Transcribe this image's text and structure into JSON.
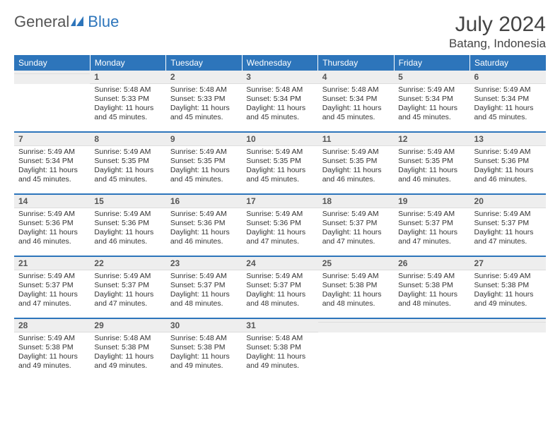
{
  "brand": {
    "part1": "General",
    "part2": "Blue"
  },
  "title": "July 2024",
  "location": "Batang, Indonesia",
  "colors": {
    "header_bg": "#2d75bb",
    "header_text": "#ffffff",
    "daynum_bg": "#eeeeee",
    "week_sep": "#2d75bb",
    "text": "#333333",
    "background": "#ffffff"
  },
  "dayHeaders": [
    "Sunday",
    "Monday",
    "Tuesday",
    "Wednesday",
    "Thursday",
    "Friday",
    "Saturday"
  ],
  "weeks": [
    [
      {
        "num": "",
        "lines": []
      },
      {
        "num": "1",
        "lines": [
          "Sunrise: 5:48 AM",
          "Sunset: 5:33 PM",
          "Daylight: 11 hours",
          "and 45 minutes."
        ]
      },
      {
        "num": "2",
        "lines": [
          "Sunrise: 5:48 AM",
          "Sunset: 5:33 PM",
          "Daylight: 11 hours",
          "and 45 minutes."
        ]
      },
      {
        "num": "3",
        "lines": [
          "Sunrise: 5:48 AM",
          "Sunset: 5:34 PM",
          "Daylight: 11 hours",
          "and 45 minutes."
        ]
      },
      {
        "num": "4",
        "lines": [
          "Sunrise: 5:48 AM",
          "Sunset: 5:34 PM",
          "Daylight: 11 hours",
          "and 45 minutes."
        ]
      },
      {
        "num": "5",
        "lines": [
          "Sunrise: 5:49 AM",
          "Sunset: 5:34 PM",
          "Daylight: 11 hours",
          "and 45 minutes."
        ]
      },
      {
        "num": "6",
        "lines": [
          "Sunrise: 5:49 AM",
          "Sunset: 5:34 PM",
          "Daylight: 11 hours",
          "and 45 minutes."
        ]
      }
    ],
    [
      {
        "num": "7",
        "lines": [
          "Sunrise: 5:49 AM",
          "Sunset: 5:34 PM",
          "Daylight: 11 hours",
          "and 45 minutes."
        ]
      },
      {
        "num": "8",
        "lines": [
          "Sunrise: 5:49 AM",
          "Sunset: 5:35 PM",
          "Daylight: 11 hours",
          "and 45 minutes."
        ]
      },
      {
        "num": "9",
        "lines": [
          "Sunrise: 5:49 AM",
          "Sunset: 5:35 PM",
          "Daylight: 11 hours",
          "and 45 minutes."
        ]
      },
      {
        "num": "10",
        "lines": [
          "Sunrise: 5:49 AM",
          "Sunset: 5:35 PM",
          "Daylight: 11 hours",
          "and 45 minutes."
        ]
      },
      {
        "num": "11",
        "lines": [
          "Sunrise: 5:49 AM",
          "Sunset: 5:35 PM",
          "Daylight: 11 hours",
          "and 46 minutes."
        ]
      },
      {
        "num": "12",
        "lines": [
          "Sunrise: 5:49 AM",
          "Sunset: 5:35 PM",
          "Daylight: 11 hours",
          "and 46 minutes."
        ]
      },
      {
        "num": "13",
        "lines": [
          "Sunrise: 5:49 AM",
          "Sunset: 5:36 PM",
          "Daylight: 11 hours",
          "and 46 minutes."
        ]
      }
    ],
    [
      {
        "num": "14",
        "lines": [
          "Sunrise: 5:49 AM",
          "Sunset: 5:36 PM",
          "Daylight: 11 hours",
          "and 46 minutes."
        ]
      },
      {
        "num": "15",
        "lines": [
          "Sunrise: 5:49 AM",
          "Sunset: 5:36 PM",
          "Daylight: 11 hours",
          "and 46 minutes."
        ]
      },
      {
        "num": "16",
        "lines": [
          "Sunrise: 5:49 AM",
          "Sunset: 5:36 PM",
          "Daylight: 11 hours",
          "and 46 minutes."
        ]
      },
      {
        "num": "17",
        "lines": [
          "Sunrise: 5:49 AM",
          "Sunset: 5:36 PM",
          "Daylight: 11 hours",
          "and 47 minutes."
        ]
      },
      {
        "num": "18",
        "lines": [
          "Sunrise: 5:49 AM",
          "Sunset: 5:37 PM",
          "Daylight: 11 hours",
          "and 47 minutes."
        ]
      },
      {
        "num": "19",
        "lines": [
          "Sunrise: 5:49 AM",
          "Sunset: 5:37 PM",
          "Daylight: 11 hours",
          "and 47 minutes."
        ]
      },
      {
        "num": "20",
        "lines": [
          "Sunrise: 5:49 AM",
          "Sunset: 5:37 PM",
          "Daylight: 11 hours",
          "and 47 minutes."
        ]
      }
    ],
    [
      {
        "num": "21",
        "lines": [
          "Sunrise: 5:49 AM",
          "Sunset: 5:37 PM",
          "Daylight: 11 hours",
          "and 47 minutes."
        ]
      },
      {
        "num": "22",
        "lines": [
          "Sunrise: 5:49 AM",
          "Sunset: 5:37 PM",
          "Daylight: 11 hours",
          "and 47 minutes."
        ]
      },
      {
        "num": "23",
        "lines": [
          "Sunrise: 5:49 AM",
          "Sunset: 5:37 PM",
          "Daylight: 11 hours",
          "and 48 minutes."
        ]
      },
      {
        "num": "24",
        "lines": [
          "Sunrise: 5:49 AM",
          "Sunset: 5:37 PM",
          "Daylight: 11 hours",
          "and 48 minutes."
        ]
      },
      {
        "num": "25",
        "lines": [
          "Sunrise: 5:49 AM",
          "Sunset: 5:38 PM",
          "Daylight: 11 hours",
          "and 48 minutes."
        ]
      },
      {
        "num": "26",
        "lines": [
          "Sunrise: 5:49 AM",
          "Sunset: 5:38 PM",
          "Daylight: 11 hours",
          "and 48 minutes."
        ]
      },
      {
        "num": "27",
        "lines": [
          "Sunrise: 5:49 AM",
          "Sunset: 5:38 PM",
          "Daylight: 11 hours",
          "and 49 minutes."
        ]
      }
    ],
    [
      {
        "num": "28",
        "lines": [
          "Sunrise: 5:49 AM",
          "Sunset: 5:38 PM",
          "Daylight: 11 hours",
          "and 49 minutes."
        ]
      },
      {
        "num": "29",
        "lines": [
          "Sunrise: 5:48 AM",
          "Sunset: 5:38 PM",
          "Daylight: 11 hours",
          "and 49 minutes."
        ]
      },
      {
        "num": "30",
        "lines": [
          "Sunrise: 5:48 AM",
          "Sunset: 5:38 PM",
          "Daylight: 11 hours",
          "and 49 minutes."
        ]
      },
      {
        "num": "31",
        "lines": [
          "Sunrise: 5:48 AM",
          "Sunset: 5:38 PM",
          "Daylight: 11 hours",
          "and 49 minutes."
        ]
      },
      {
        "num": "",
        "lines": []
      },
      {
        "num": "",
        "lines": []
      },
      {
        "num": "",
        "lines": []
      }
    ]
  ]
}
